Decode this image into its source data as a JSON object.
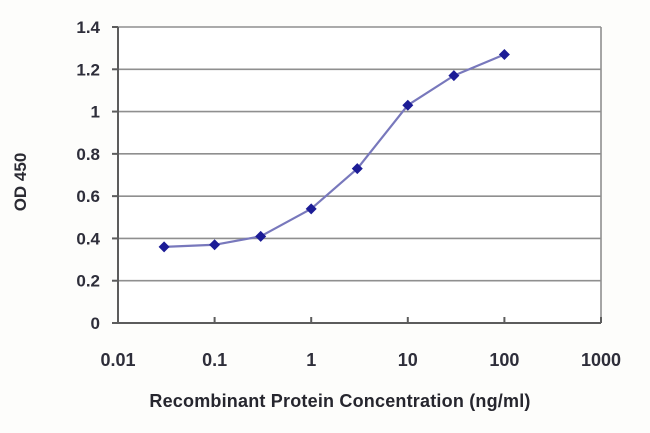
{
  "figure": {
    "background": "#fdfdfb"
  },
  "chart_data": {
    "type": "line",
    "title": "",
    "xlabel": "Recombinant Protein Concentration (ng/ml)",
    "ylabel": "OD 450",
    "x_scale": "log",
    "xlim": [
      0.01,
      1000
    ],
    "ylim": [
      0,
      1.4
    ],
    "x_ticks": [
      0.01,
      0.1,
      1,
      10,
      100,
      1000
    ],
    "x_tick_labels": [
      "0.01",
      "0.1",
      "1",
      "10",
      "100",
      "1000"
    ],
    "y_ticks": [
      0,
      0.2,
      0.4,
      0.6,
      0.8,
      1,
      1.2,
      1.4
    ],
    "y_tick_labels": [
      "0",
      "0.2",
      "0.4",
      "0.6",
      "0.8",
      "1",
      "1.2",
      "1.4"
    ],
    "grid": "horizontal",
    "legend": "none",
    "frame": [
      "left",
      "bottom",
      "right",
      "top"
    ],
    "series": [
      {
        "name": "OD 450",
        "marker": "diamond",
        "x": [
          0.03,
          0.1,
          0.3,
          1,
          3,
          10,
          30,
          100
        ],
        "y": [
          0.36,
          0.37,
          0.41,
          0.54,
          0.73,
          1.03,
          1.17,
          1.27
        ]
      }
    ],
    "colors": {
      "line": "#7878bc",
      "marker": "#1c1c96",
      "gridline": "#8f8f8f",
      "axis": "#5c5c5c",
      "tick_text": "#2e2e3a",
      "title_text": "#26262e"
    }
  }
}
